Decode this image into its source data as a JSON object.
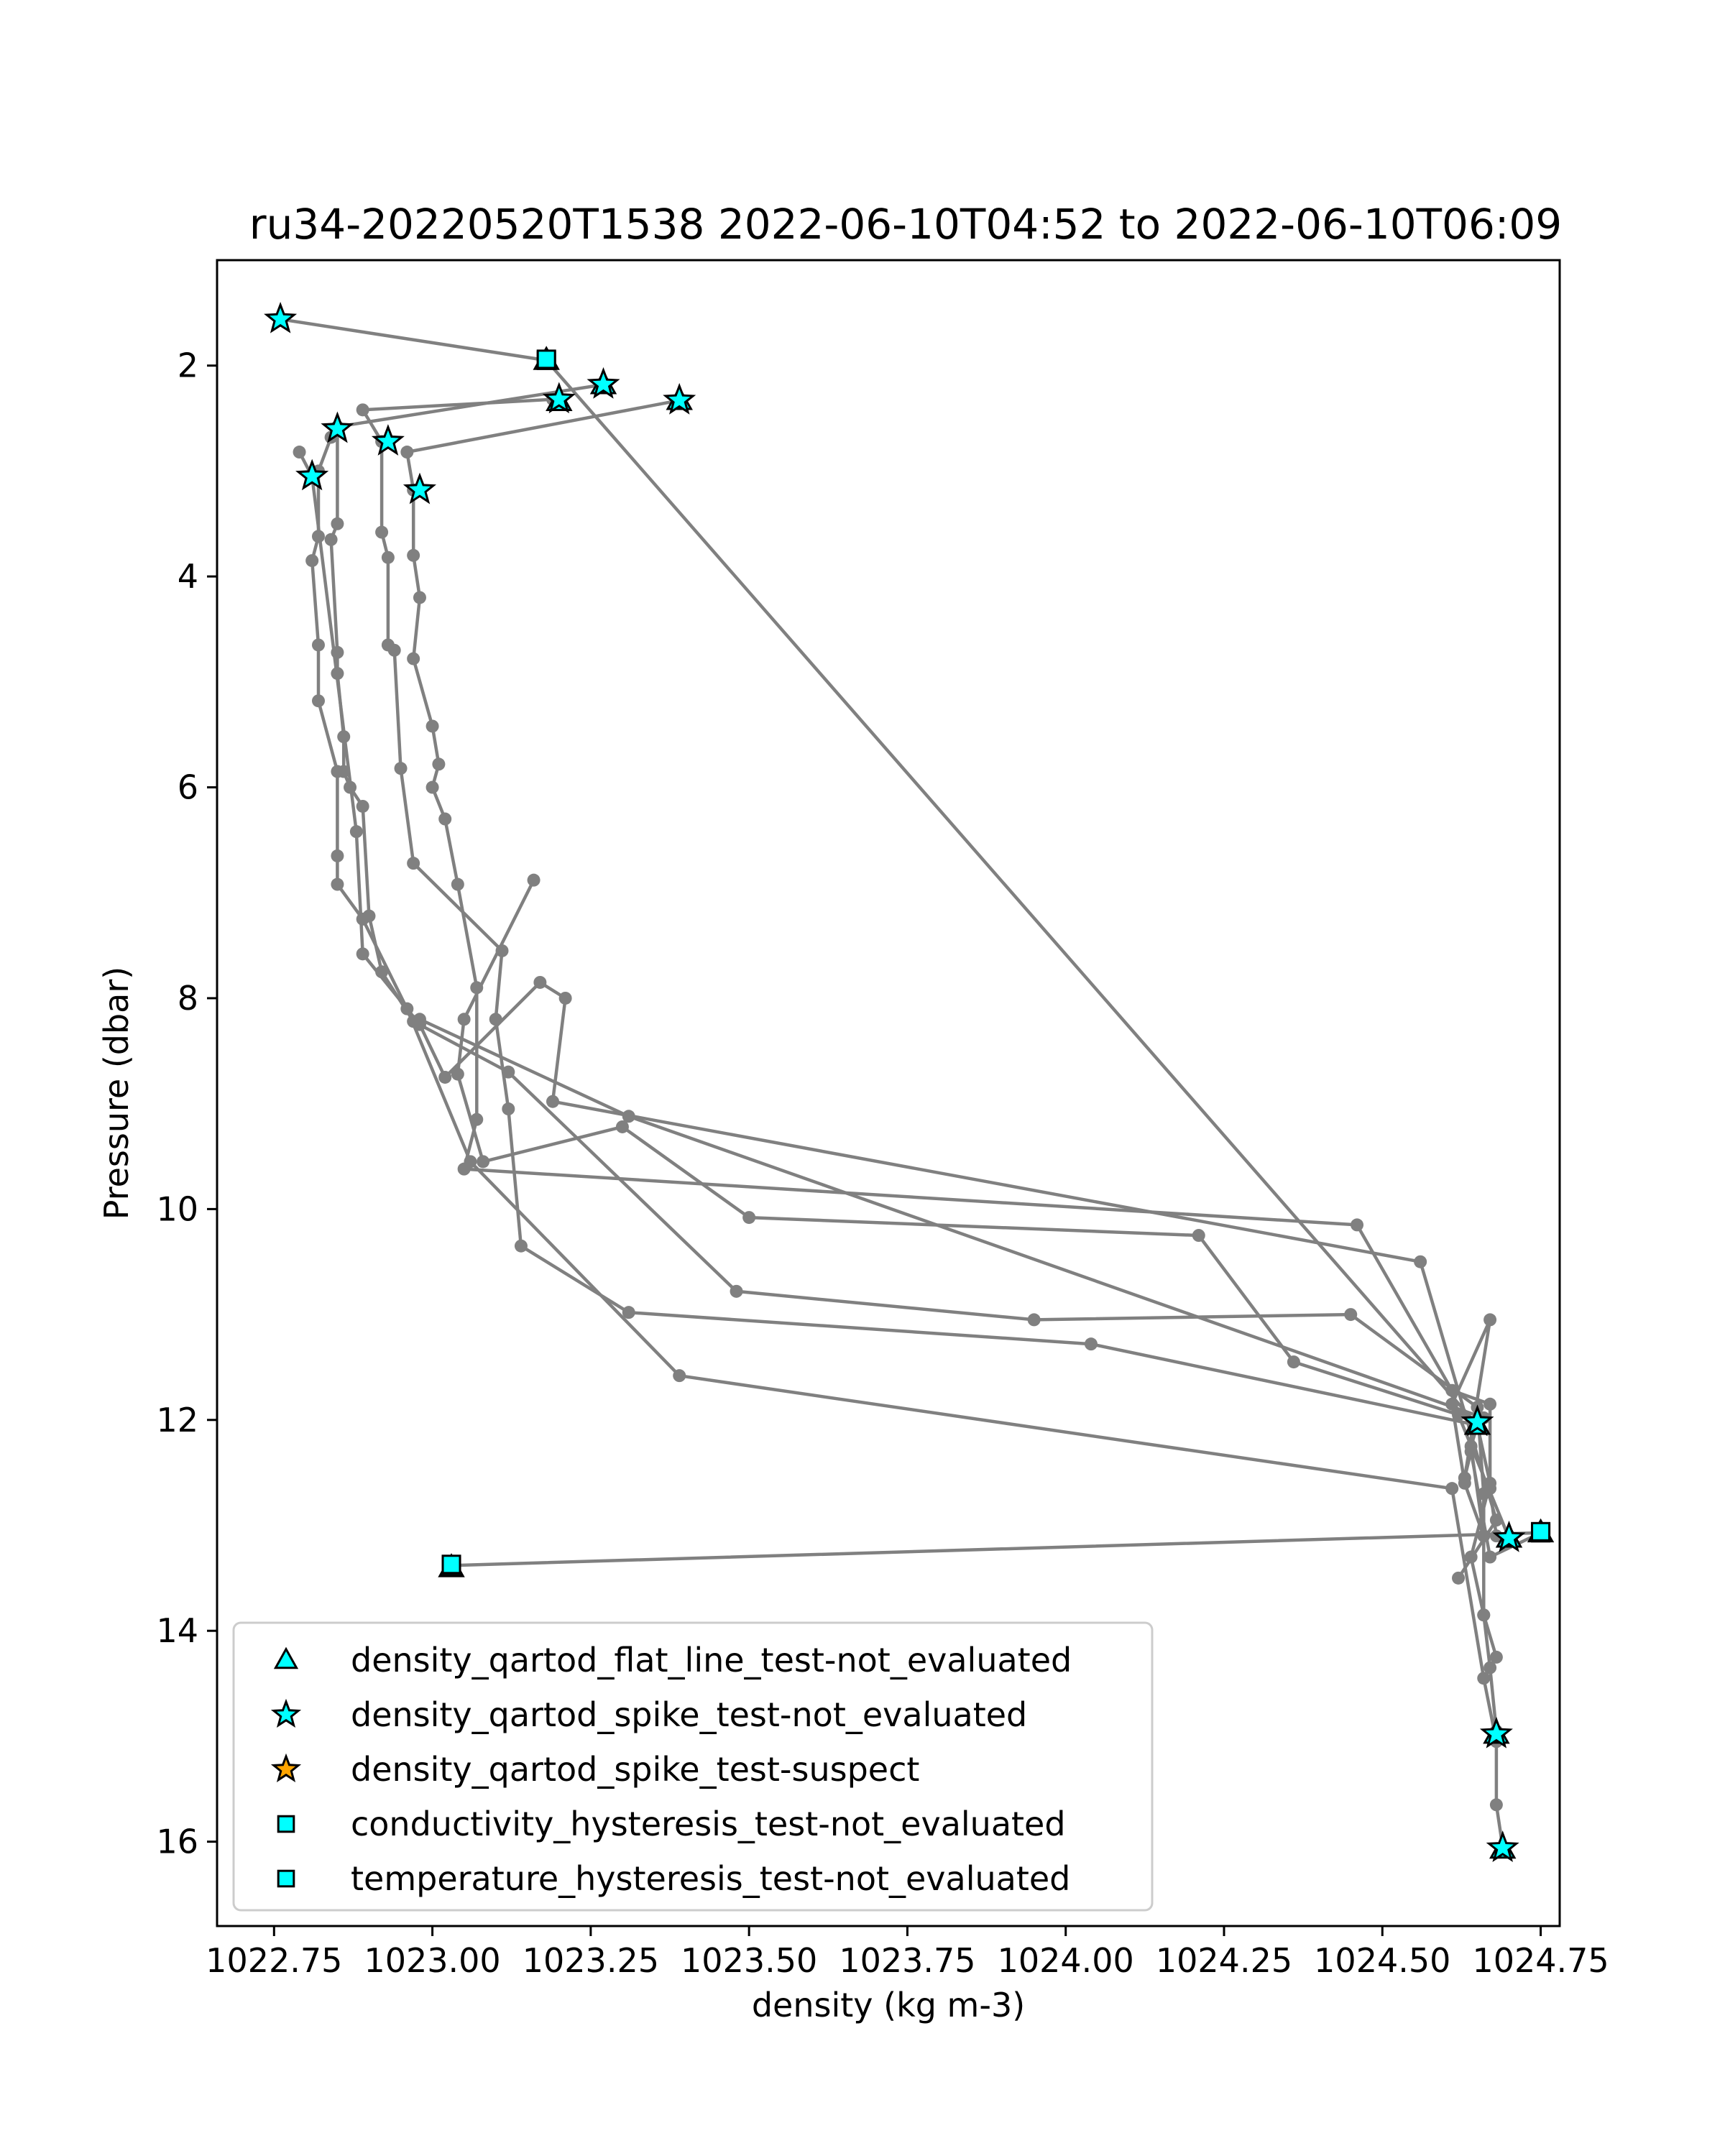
{
  "chart_data": {
    "type": "scatter",
    "title": "ru34-20220520T1538 2022-06-10T04:52 to 2022-06-10T06:09",
    "xlabel": "density (kg m-3)",
    "ylabel": "Pressure (dbar)",
    "xlim": [
      1022.66,
      1024.78
    ],
    "ylim": [
      16.8,
      1.0
    ],
    "y_inverted": true,
    "grid": false,
    "legend_position": "lower-left",
    "x_ticks": [
      1022.75,
      1023.0,
      1023.25,
      1023.5,
      1023.75,
      1024.0,
      1024.25,
      1024.5,
      1024.75
    ],
    "x_tick_labels": [
      "1022.75",
      "1023.00",
      "1023.25",
      "1023.50",
      "1023.75",
      "1024.00",
      "1024.25",
      "1024.50",
      "1024.75"
    ],
    "y_ticks": [
      2,
      4,
      6,
      8,
      10,
      12,
      14,
      16
    ],
    "y_tick_labels": [
      "2",
      "4",
      "6",
      "8",
      "10",
      "12",
      "14",
      "16"
    ],
    "colors": {
      "profile_line": "#808080",
      "not_evaluated": "#00ffff",
      "suspect": "#ffa500",
      "marker_edge": "#000000"
    },
    "series": [
      {
        "role": "profile",
        "marker": "dot",
        "points": [
          [
            1022.76,
            1.56
          ],
          [
            1023.18,
            1.95
          ],
          [
            1024.65,
            12.05
          ],
          [
            1024.64,
            12.25
          ],
          [
            1024.66,
            13.1
          ],
          [
            1024.63,
            12.6
          ],
          [
            1024.61,
            11.85
          ],
          [
            1024.67,
            11.05
          ],
          [
            1024.63,
            12.55
          ],
          [
            1024.64,
            12.3
          ],
          [
            1024.67,
            13.3
          ],
          [
            1024.75,
            13.07
          ],
          [
            1023.03,
            13.38
          ]
        ]
      },
      {
        "role": "profile",
        "marker": "dot",
        "points": [
          [
            1023.39,
            2.33
          ],
          [
            1022.96,
            2.82
          ],
          [
            1022.97,
            3.18
          ],
          [
            1022.97,
            3.8
          ],
          [
            1022.98,
            4.2
          ],
          [
            1022.97,
            4.78
          ],
          [
            1023.0,
            5.42
          ],
          [
            1023.01,
            5.78
          ],
          [
            1023.0,
            6.0
          ],
          [
            1023.02,
            6.3
          ],
          [
            1023.04,
            6.92
          ],
          [
            1023.07,
            7.9
          ],
          [
            1023.07,
            9.15
          ],
          [
            1023.05,
            9.62
          ],
          [
            1024.46,
            10.15
          ],
          [
            1024.61,
            11.72
          ],
          [
            1024.67,
            11.85
          ],
          [
            1024.67,
            12.65
          ],
          [
            1024.68,
            13.1
          ]
        ]
      },
      {
        "role": "profile",
        "marker": "dot",
        "points": [
          [
            1023.19,
            2.32
          ],
          [
            1022.89,
            2.42
          ],
          [
            1022.92,
            2.72
          ],
          [
            1022.92,
            3.58
          ],
          [
            1022.93,
            3.82
          ],
          [
            1022.93,
            4.65
          ],
          [
            1022.94,
            4.7
          ],
          [
            1022.95,
            5.82
          ],
          [
            1022.97,
            6.72
          ],
          [
            1023.11,
            7.55
          ],
          [
            1023.1,
            8.2
          ],
          [
            1023.12,
            9.05
          ],
          [
            1023.14,
            10.35
          ],
          [
            1023.31,
            10.98
          ],
          [
            1024.04,
            11.28
          ],
          [
            1024.65,
            12.05
          ],
          [
            1024.67,
            12.6
          ],
          [
            1024.64,
            13.3
          ],
          [
            1024.66,
            13.85
          ],
          [
            1024.68,
            14.25
          ]
        ]
      },
      {
        "role": "profile",
        "marker": "dot",
        "points": [
          [
            1023.27,
            2.18
          ],
          [
            1022.85,
            2.58
          ],
          [
            1022.85,
            3.5
          ],
          [
            1022.84,
            3.65
          ],
          [
            1022.85,
            4.72
          ],
          [
            1022.85,
            4.92
          ],
          [
            1022.86,
            5.52
          ],
          [
            1022.86,
            5.85
          ],
          [
            1022.87,
            6.0
          ],
          [
            1022.89,
            6.18
          ],
          [
            1022.9,
            7.22
          ],
          [
            1022.92,
            7.75
          ],
          [
            1022.97,
            8.22
          ],
          [
            1023.12,
            8.7
          ],
          [
            1023.48,
            10.78
          ],
          [
            1023.95,
            11.05
          ],
          [
            1024.45,
            11.0
          ],
          [
            1024.65,
            11.88
          ],
          [
            1024.66,
            12.7
          ],
          [
            1024.66,
            13.85
          ],
          [
            1024.67,
            14.35
          ],
          [
            1024.68,
            14.95
          ]
        ]
      },
      {
        "role": "profile",
        "marker": "dot",
        "points": [
          [
            1022.84,
            2.68
          ],
          [
            1022.82,
            3.0
          ],
          [
            1022.82,
            3.62
          ],
          [
            1022.81,
            3.85
          ],
          [
            1022.82,
            4.65
          ],
          [
            1022.82,
            5.18
          ],
          [
            1022.85,
            5.85
          ],
          [
            1022.85,
            6.65
          ],
          [
            1022.85,
            6.92
          ],
          [
            1022.89,
            7.25
          ],
          [
            1022.96,
            8.1
          ],
          [
            1023.06,
            9.55
          ],
          [
            1023.39,
            11.58
          ],
          [
            1024.61,
            12.65
          ],
          [
            1024.66,
            14.45
          ],
          [
            1024.68,
            15.05
          ],
          [
            1024.68,
            15.65
          ],
          [
            1024.69,
            16.05
          ]
        ]
      },
      {
        "role": "profile",
        "marker": "dot",
        "points": [
          [
            1022.79,
            2.82
          ],
          [
            1022.81,
            3.05
          ],
          [
            1022.88,
            6.42
          ],
          [
            1022.89,
            7.58
          ],
          [
            1022.98,
            8.25
          ],
          [
            1023.02,
            8.75
          ],
          [
            1023.17,
            7.85
          ],
          [
            1023.21,
            8.0
          ],
          [
            1023.19,
            8.98
          ],
          [
            1024.56,
            10.5
          ],
          [
            1024.68,
            12.95
          ],
          [
            1024.62,
            13.5
          ]
        ]
      },
      {
        "role": "profile",
        "marker": "dot",
        "points": [
          [
            1023.16,
            6.88
          ],
          [
            1023.05,
            8.2
          ],
          [
            1023.04,
            8.72
          ],
          [
            1023.08,
            9.55
          ],
          [
            1023.3,
            9.22
          ],
          [
            1023.5,
            10.08
          ],
          [
            1024.21,
            10.25
          ],
          [
            1024.36,
            11.45
          ],
          [
            1024.62,
            11.95
          ],
          [
            1024.7,
            13.12
          ]
        ]
      },
      {
        "role": "profile",
        "marker": "dot",
        "points": [
          [
            1022.98,
            8.2
          ],
          [
            1023.31,
            9.12
          ],
          [
            1024.66,
            11.98
          ]
        ]
      },
      {
        "name": "density_qartod_flat_line_test-not_evaluated",
        "marker": "triangle",
        "color": "#00ffff",
        "points": [
          [
            1023.18,
            1.95
          ],
          [
            1023.27,
            2.18
          ],
          [
            1023.2,
            2.34
          ],
          [
            1023.39,
            2.33
          ],
          [
            1024.65,
            12.05
          ],
          [
            1024.7,
            13.12
          ],
          [
            1024.75,
            13.07
          ],
          [
            1023.03,
            13.4
          ],
          [
            1024.68,
            14.98
          ],
          [
            1024.69,
            16.07
          ]
        ]
      },
      {
        "name": "density_qartod_spike_test-not_evaluated",
        "marker": "star",
        "color": "#00ffff",
        "points": [
          [
            1022.76,
            1.56
          ],
          [
            1023.27,
            2.18
          ],
          [
            1023.2,
            2.32
          ],
          [
            1023.39,
            2.33
          ],
          [
            1022.85,
            2.6
          ],
          [
            1022.93,
            2.72
          ],
          [
            1022.81,
            3.05
          ],
          [
            1022.98,
            3.18
          ],
          [
            1024.65,
            12.02
          ],
          [
            1024.7,
            13.12
          ],
          [
            1024.68,
            14.98
          ],
          [
            1024.69,
            16.06
          ]
        ]
      },
      {
        "name": "density_qartod_spike_test-suspect",
        "marker": "star",
        "color": "#ffa500",
        "points": []
      },
      {
        "name": "conductivity_hysteresis_test-not_evaluated",
        "marker": "square",
        "color": "#00ffff",
        "points": [
          [
            1023.18,
            1.95
          ],
          [
            1024.75,
            13.07
          ],
          [
            1023.03,
            13.38
          ]
        ]
      },
      {
        "name": "temperature_hysteresis_test-not_evaluated",
        "marker": "square",
        "color": "#00ffff",
        "points": [
          [
            1023.18,
            1.94
          ],
          [
            1024.75,
            13.06
          ],
          [
            1023.03,
            13.37
          ]
        ]
      }
    ],
    "legend": [
      {
        "label": "density_qartod_flat_line_test-not_evaluated",
        "marker": "triangle",
        "color": "#00ffff"
      },
      {
        "label": "density_qartod_spike_test-not_evaluated",
        "marker": "star",
        "color": "#00ffff"
      },
      {
        "label": "density_qartod_spike_test-suspect",
        "marker": "star",
        "color": "#ffa500"
      },
      {
        "label": "conductivity_hysteresis_test-not_evaluated",
        "marker": "square",
        "color": "#00ffff"
      },
      {
        "label": "temperature_hysteresis_test-not_evaluated",
        "marker": "square",
        "color": "#00ffff"
      }
    ]
  }
}
